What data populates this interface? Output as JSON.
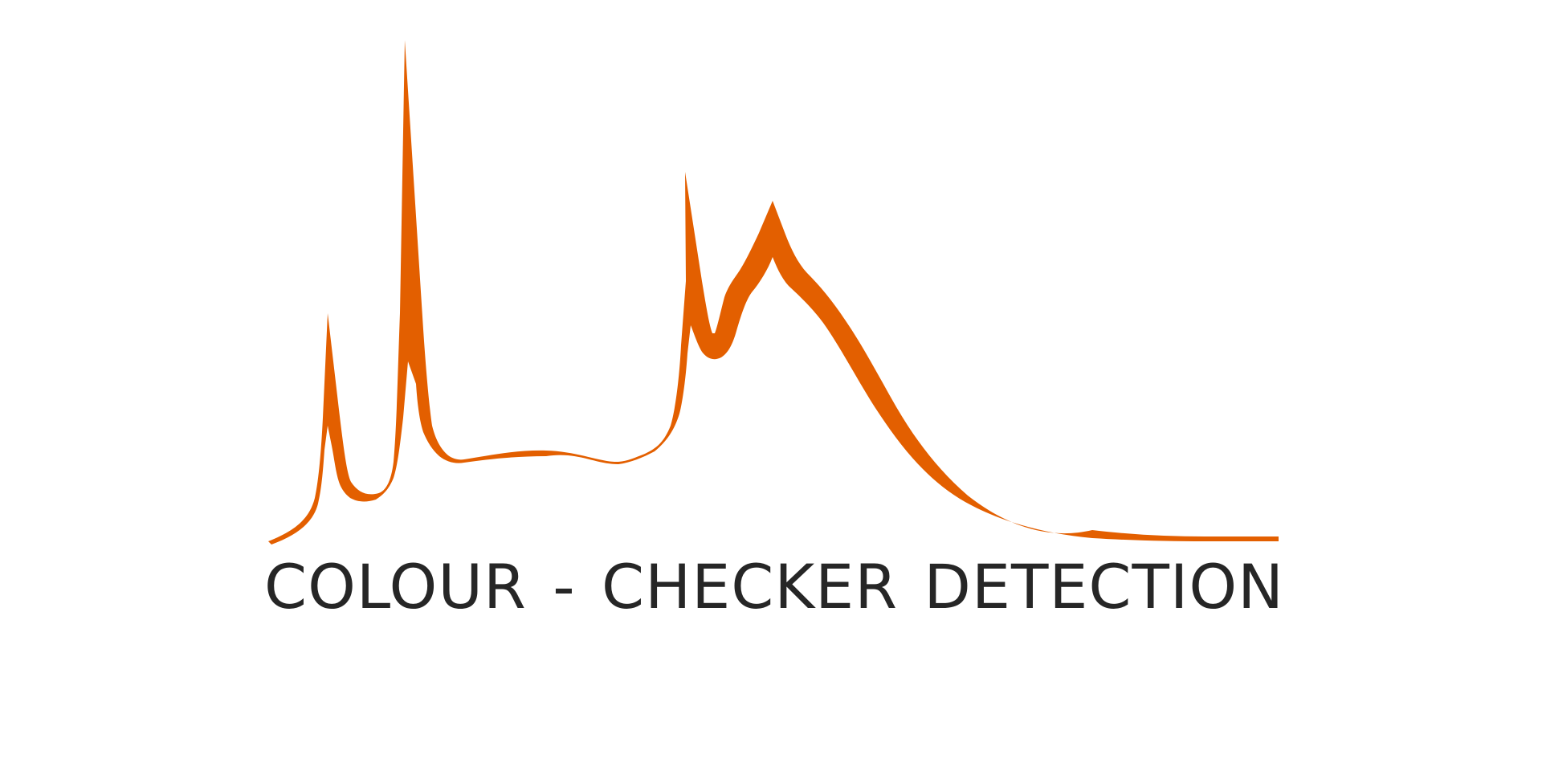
{
  "logo": {
    "wordmark": "COLOUR - CHECKER DETECTION",
    "mark_icon": "spectral-curve-icon",
    "colors": {
      "curve": "#E35F00",
      "wordmark": "#262626",
      "background": "#FFFFFF"
    }
  }
}
